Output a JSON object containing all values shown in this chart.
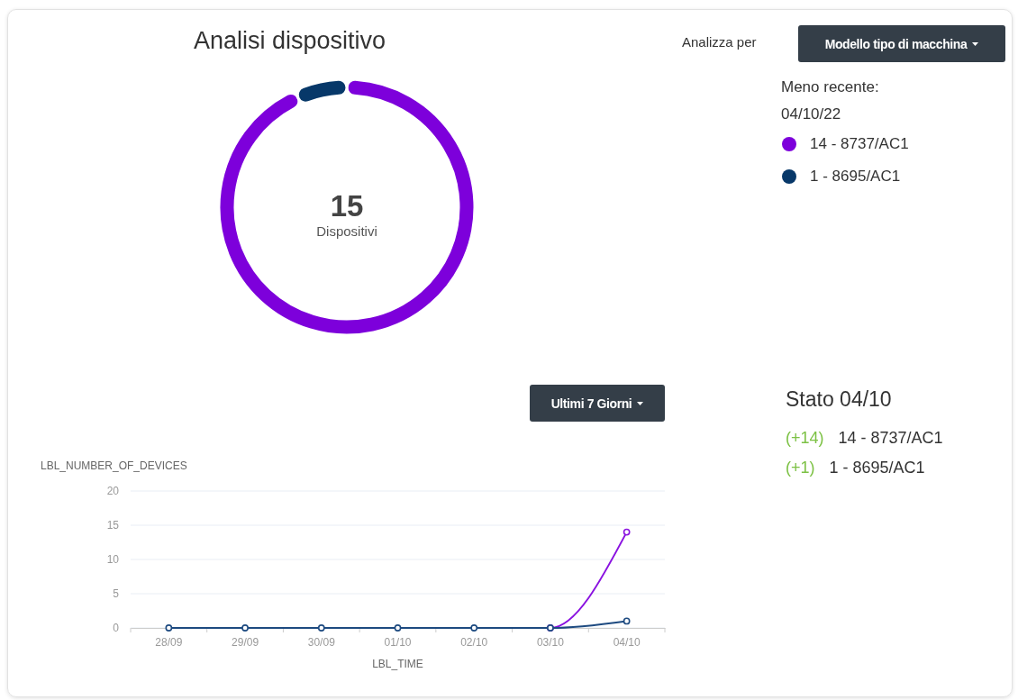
{
  "chart_data": [
    {
      "type": "donut",
      "title": "Analisi dispositivo",
      "categories": [
        "14 - 8737/AC1",
        "1 - 8695/AC1"
      ],
      "values": [
        14,
        1
      ],
      "colors": [
        "#7d00db",
        "#073869"
      ],
      "legend": "top right",
      "legend_title": "Meno recente: 04/10/22",
      "annotations": [
        "15",
        "Dispositivi",
        "Analizza per",
        "Modello tipo di macchina"
      ]
    },
    {
      "type": "line",
      "categories": [
        "28/09",
        "29/09",
        "30/09",
        "01/10",
        "02/10",
        "03/10",
        "04/10"
      ],
      "series": [
        {
          "color": "#8a12e0",
          "values": [
            null,
            null,
            null,
            null,
            null,
            0,
            14
          ]
        },
        {
          "color": "#1d4a80",
          "values": [
            0,
            0,
            0,
            0,
            0,
            0,
            1
          ]
        }
      ],
      "ylim": [
        0,
        20
      ],
      "yticks": [
        0,
        5,
        10,
        15,
        20
      ],
      "grid": "y",
      "marker": "circle",
      "xlabel": "LBL_TIME",
      "ylabel": "LBL_NUMBER_OF_DEVICES",
      "annotations": [
        "Ultimi 7 Giorni"
      ]
    },
    {
      "type": "other",
      "title": "Stato 04/10",
      "annotations": [
        "(+14)",
        "14 - 8737/AC1",
        "(+1)",
        "1 - 8695/AC1"
      ]
    }
  ]
}
